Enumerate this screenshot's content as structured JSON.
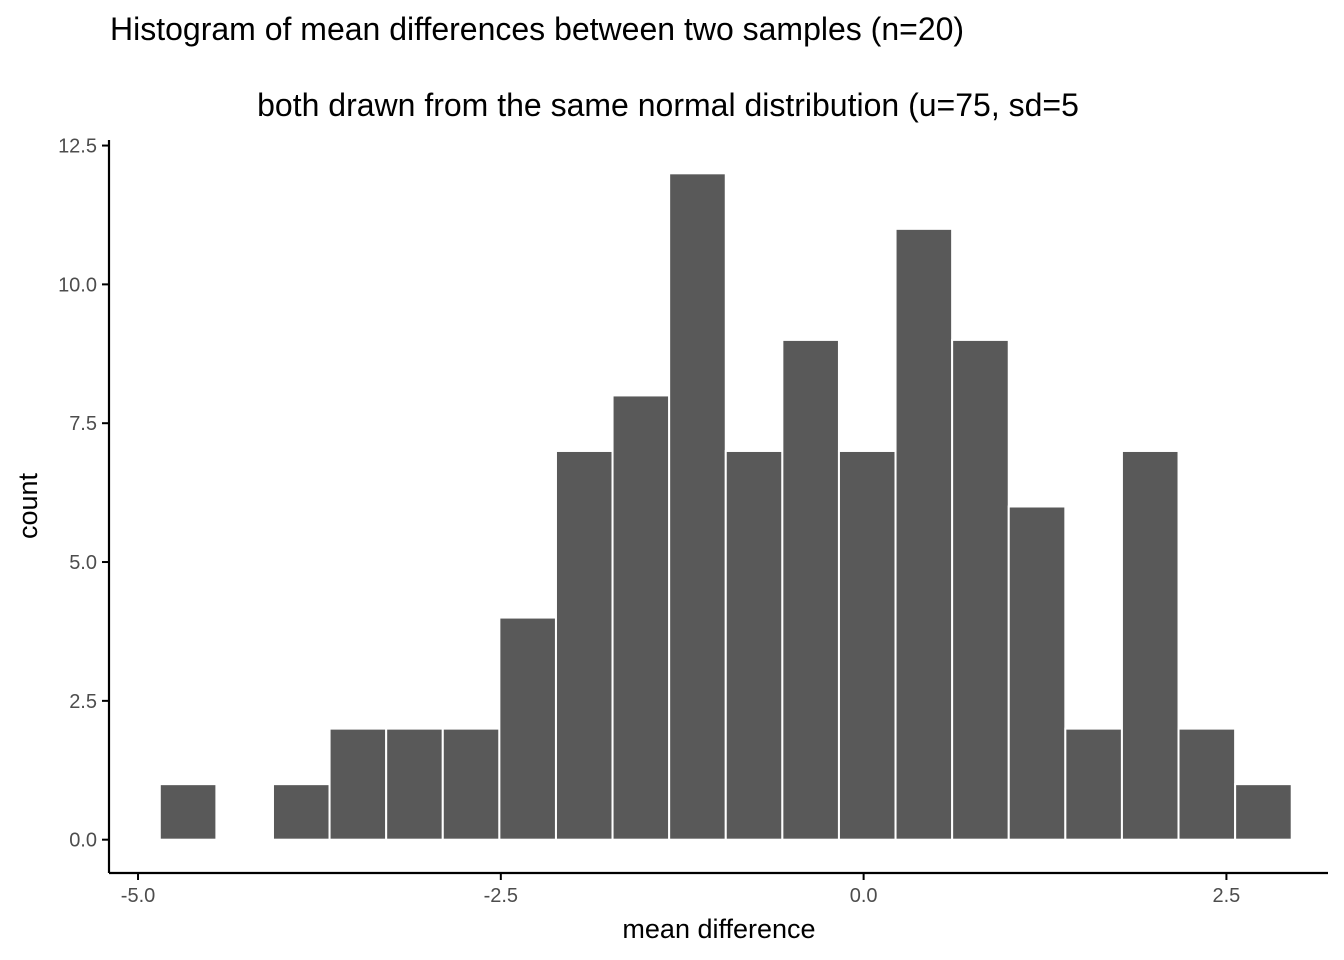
{
  "chart_data": {
    "type": "bar",
    "title": "Histogram of mean differences between two samples (n=20)",
    "subtitle": "both drawn from the same normal distribution (u=75, sd=5",
    "xlabel": "mean difference",
    "ylabel": "count",
    "xlim": [
      -5.2,
      3.2
    ],
    "ylim": [
      -0.6,
      12.6
    ],
    "x_ticks": [
      {
        "value": -5.0,
        "label": "-5.0"
      },
      {
        "value": -2.5,
        "label": "-2.5"
      },
      {
        "value": 0.0,
        "label": "0.0"
      },
      {
        "value": 2.5,
        "label": "2.5"
      }
    ],
    "y_ticks": [
      {
        "value": 0.0,
        "label": "0.0"
      },
      {
        "value": 2.5,
        "label": "2.5"
      },
      {
        "value": 5.0,
        "label": "5.0"
      },
      {
        "value": 7.5,
        "label": "7.5"
      },
      {
        "value": 10.0,
        "label": "10.0"
      },
      {
        "value": 12.5,
        "label": "12.5"
      }
    ],
    "bins": [
      {
        "x0": -4.85,
        "x1": -4.46,
        "count": 1
      },
      {
        "x0": -4.46,
        "x1": -4.07,
        "count": 0
      },
      {
        "x0": -4.07,
        "x1": -3.68,
        "count": 1
      },
      {
        "x0": -3.68,
        "x1": -3.29,
        "count": 2
      },
      {
        "x0": -3.29,
        "x1": -2.9,
        "count": 2
      },
      {
        "x0": -2.9,
        "x1": -2.51,
        "count": 2
      },
      {
        "x0": -2.51,
        "x1": -2.12,
        "count": 4
      },
      {
        "x0": -2.12,
        "x1": -1.73,
        "count": 7
      },
      {
        "x0": -1.73,
        "x1": -1.34,
        "count": 8
      },
      {
        "x0": -1.34,
        "x1": -0.95,
        "count": 12
      },
      {
        "x0": -0.95,
        "x1": -0.56,
        "count": 7
      },
      {
        "x0": -0.56,
        "x1": -0.17,
        "count": 9
      },
      {
        "x0": -0.17,
        "x1": 0.22,
        "count": 7
      },
      {
        "x0": 0.22,
        "x1": 0.61,
        "count": 11
      },
      {
        "x0": 0.61,
        "x1": 1.0,
        "count": 9
      },
      {
        "x0": 1.0,
        "x1": 1.39,
        "count": 6
      },
      {
        "x0": 1.39,
        "x1": 1.78,
        "count": 2
      },
      {
        "x0": 1.78,
        "x1": 2.17,
        "count": 7
      },
      {
        "x0": 2.17,
        "x1": 2.56,
        "count": 2
      },
      {
        "x0": 2.56,
        "x1": 2.95,
        "count": 1
      }
    ],
    "bar_fill": "#595959",
    "bar_outline": "#ffffff",
    "axis_color": "#000000",
    "grid": false
  }
}
